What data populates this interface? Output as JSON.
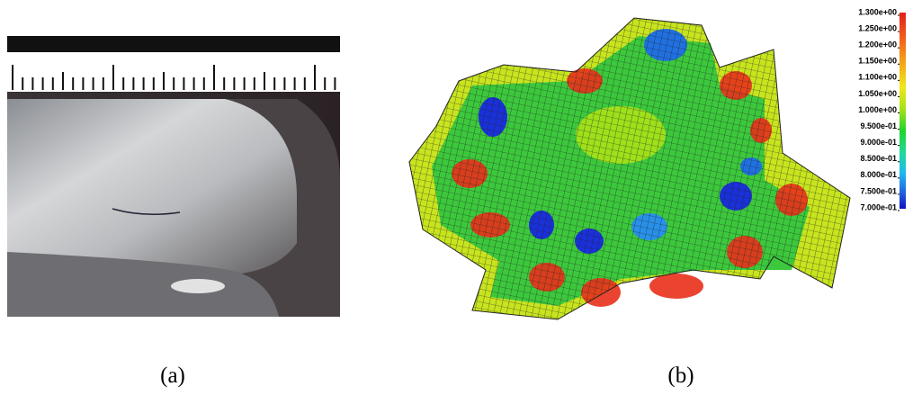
{
  "panels": [
    {
      "label": "(a)"
    },
    {
      "label": "(b)",
      "legend": {
        "labels": [
          "1.300e+00",
          "1.250e+00",
          "1.200e+00",
          "1.150e+00",
          "1.100e+00",
          "1.050e+00",
          "1.000e+00",
          "9.500e-01",
          "9.000e-01",
          "8.500e-01",
          "8.000e-01",
          "7.500e-01",
          "7.000e-01"
        ]
      }
    }
  ]
}
